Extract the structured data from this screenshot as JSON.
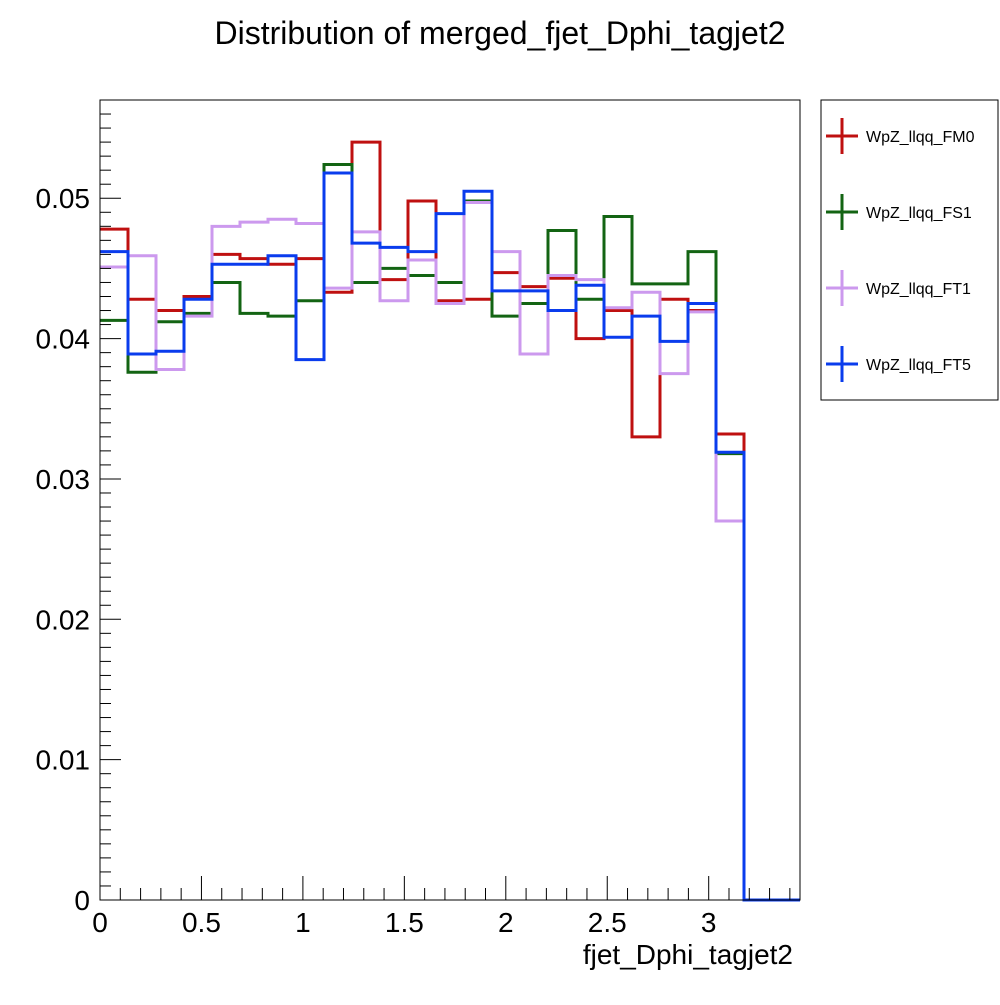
{
  "chart_data": {
    "type": "line",
    "title": "Distribution of merged_fjet_Dphi_tagjet2",
    "xlabel": "fjet_Dphi_tagjet2",
    "ylabel": "",
    "xlim": [
      0,
      3.45
    ],
    "ylim": [
      0,
      0.057
    ],
    "xticks": [
      0,
      0.5,
      1,
      1.5,
      2,
      2.5,
      3
    ],
    "xtick_labels": [
      "0",
      "0.5",
      "1",
      "1.5",
      "2",
      "2.5",
      "3"
    ],
    "yticks": [
      0,
      0.01,
      0.02,
      0.03,
      0.04,
      0.05
    ],
    "ytick_labels": [
      "0",
      "0.01",
      "0.02",
      "0.03",
      "0.04",
      "0.05"
    ],
    "bin_edges": [
      0,
      0.138,
      0.276,
      0.414,
      0.552,
      0.69,
      0.828,
      0.966,
      1.104,
      1.242,
      1.38,
      1.518,
      1.656,
      1.794,
      1.932,
      2.07,
      2.208,
      2.346,
      2.484,
      2.622,
      2.76,
      2.898,
      3.036,
      3.174,
      3.312,
      3.45
    ],
    "grid": false,
    "legend_position": "right",
    "series": [
      {
        "name": "WpZ_llqq_FM0",
        "color": "#bf1010",
        "values": [
          0.0478,
          0.0428,
          0.042,
          0.043,
          0.046,
          0.0457,
          0.0453,
          0.0457,
          0.0433,
          0.054,
          0.0442,
          0.0498,
          0.0427,
          0.0428,
          0.0447,
          0.0437,
          0.0443,
          0.04,
          0.042,
          0.033,
          0.0428,
          0.042,
          0.0332,
          0.0,
          0.0
        ]
      },
      {
        "name": "WpZ_llqq_FS1",
        "color": "#136413",
        "values": [
          0.0413,
          0.0376,
          0.0412,
          0.0418,
          0.044,
          0.0418,
          0.0416,
          0.0427,
          0.0524,
          0.044,
          0.045,
          0.0445,
          0.044,
          0.0498,
          0.0416,
          0.0425,
          0.0477,
          0.0428,
          0.0487,
          0.0439,
          0.0439,
          0.0462,
          0.0318,
          0.0,
          0.0
        ]
      },
      {
        "name": "WpZ_llqq_FT1",
        "color": "#cc99ee",
        "values": [
          0.0451,
          0.0459,
          0.0378,
          0.0416,
          0.048,
          0.0483,
          0.0485,
          0.0482,
          0.0436,
          0.0476,
          0.0427,
          0.0456,
          0.0425,
          0.0497,
          0.0462,
          0.0389,
          0.0445,
          0.0442,
          0.0422,
          0.0433,
          0.0375,
          0.0419,
          0.027,
          0.0,
          0.0
        ]
      },
      {
        "name": "WpZ_llqq_FT5",
        "color": "#0a3ced",
        "values": [
          0.0462,
          0.0389,
          0.0391,
          0.0428,
          0.0453,
          0.0453,
          0.0459,
          0.0385,
          0.0518,
          0.0468,
          0.0465,
          0.0462,
          0.0489,
          0.0505,
          0.0434,
          0.0434,
          0.042,
          0.0438,
          0.0401,
          0.0416,
          0.0398,
          0.0425,
          0.0319,
          0.0,
          0.0
        ]
      }
    ]
  }
}
